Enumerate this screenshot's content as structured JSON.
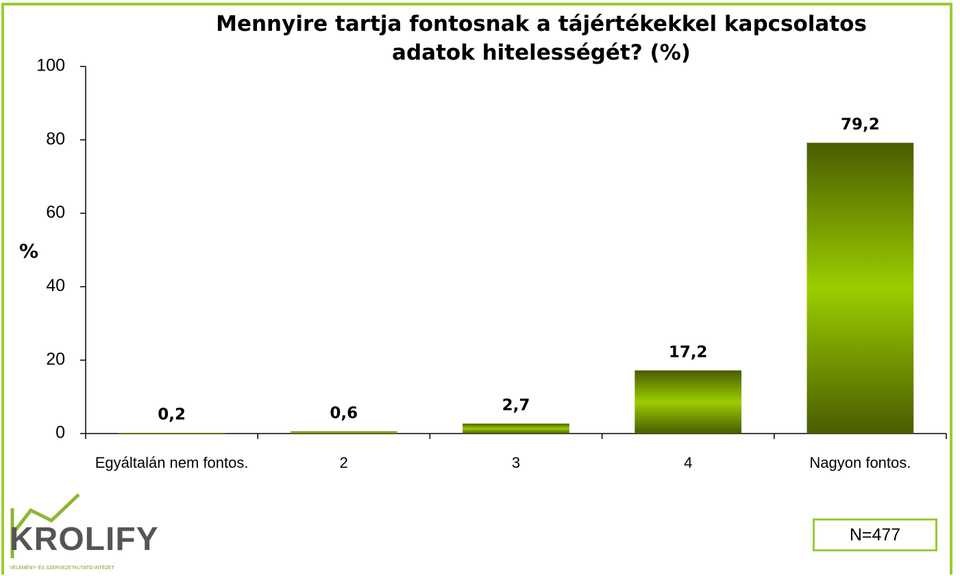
{
  "chart_data": {
    "type": "bar",
    "title": "Mennyire tartja fontosnak a tájértékekkel kapcsolatos adatok hitelességét? (%)",
    "ylabel": "%",
    "categories": [
      "Egyáltalán nem fontos.",
      "2",
      "3",
      "4",
      "Nagyon fontos."
    ],
    "values": [
      0.2,
      0.6,
      2.7,
      17.2,
      79.2
    ],
    "value_labels": [
      "0,2",
      "0,6",
      "2,7",
      "17,2",
      "79,2"
    ],
    "colors": [
      "#4a5c00",
      "#9acd00"
    ],
    "ylim": [
      0,
      100
    ],
    "yticks": [
      0,
      20,
      40,
      60,
      80,
      100
    ],
    "grid": false,
    "annotation": "N=477"
  },
  "logo": {
    "name": "KROLIFY",
    "tagline": "VÉLEMÉNY- ÉS SZERVEZETKUTATÓ INTÉZET"
  }
}
